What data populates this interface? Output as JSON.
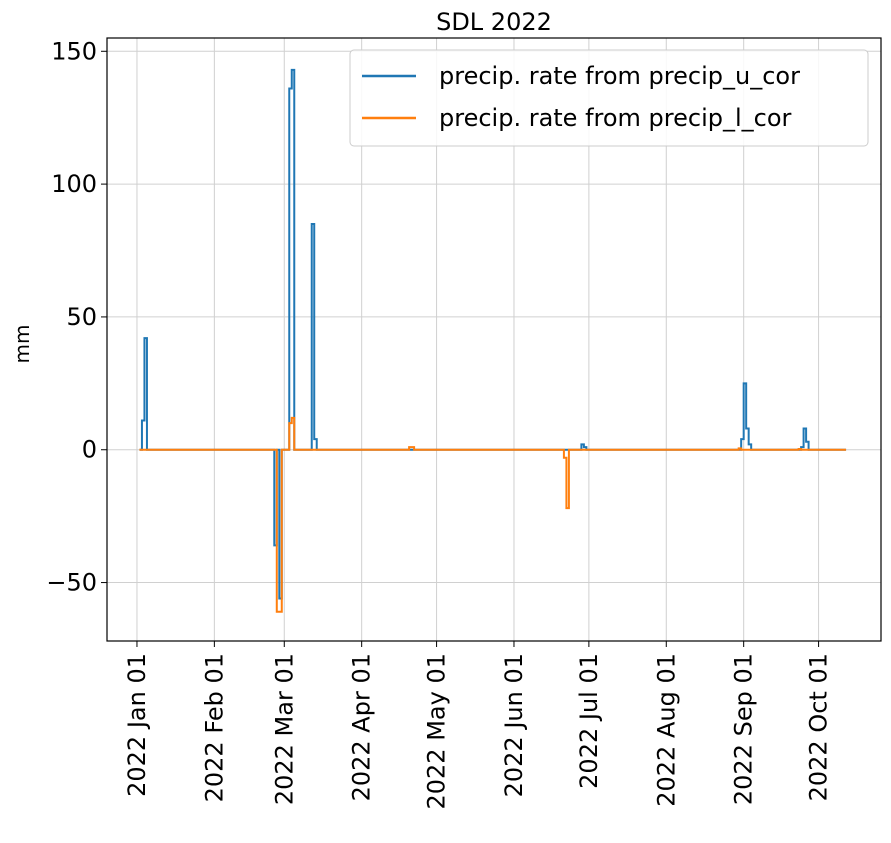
{
  "chart_data": {
    "type": "line",
    "title": "SDL 2022",
    "xlabel": "",
    "ylabel": "mm",
    "x_axis_type": "date",
    "xlim": [
      "2021-12-20",
      "2022-10-26"
    ],
    "ylim": [
      -72,
      155
    ],
    "grid": true,
    "legend_position": "top-right",
    "x_ticks": [
      "2022-01-01",
      "2022-02-01",
      "2022-03-01",
      "2022-04-01",
      "2022-05-01",
      "2022-06-01",
      "2022-07-01",
      "2022-08-01",
      "2022-09-01",
      "2022-10-01"
    ],
    "x_tick_labels": [
      "2022 Jan 01",
      "2022 Feb 01",
      "2022 Mar 01",
      "2022 Apr 01",
      "2022 May 01",
      "2022 Jun 01",
      "2022 Jul 01",
      "2022 Aug 01",
      "2022 Sep 01",
      "2022 Oct 01"
    ],
    "y_ticks": [
      -50,
      0,
      50,
      100,
      150
    ],
    "y_tick_labels": [
      "−50",
      "0",
      "50",
      "100",
      "150"
    ],
    "series": [
      {
        "name": "precip. rate from precip_u_cor",
        "color": "#1f77b4",
        "step": true,
        "points": [
          [
            "2022-01-02",
            0
          ],
          [
            "2022-01-03",
            11
          ],
          [
            "2022-01-04",
            42
          ],
          [
            "2022-01-05",
            0
          ],
          [
            "2022-02-25",
            -36
          ],
          [
            "2022-02-26",
            0
          ],
          [
            "2022-02-27",
            -56
          ],
          [
            "2022-02-28",
            0
          ],
          [
            "2022-03-03",
            136
          ],
          [
            "2022-03-04",
            143
          ],
          [
            "2022-03-05",
            0
          ],
          [
            "2022-03-12",
            85
          ],
          [
            "2022-03-13",
            4
          ],
          [
            "2022-03-14",
            0
          ],
          [
            "2022-06-28",
            2
          ],
          [
            "2022-06-29",
            1
          ],
          [
            "2022-06-30",
            0
          ],
          [
            "2022-08-31",
            4
          ],
          [
            "2022-09-01",
            25
          ],
          [
            "2022-09-02",
            8
          ],
          [
            "2022-09-03",
            2
          ],
          [
            "2022-09-04",
            0
          ],
          [
            "2022-09-24",
            1
          ],
          [
            "2022-09-25",
            8
          ],
          [
            "2022-09-26",
            3
          ],
          [
            "2022-09-27",
            0
          ],
          [
            "2022-10-12",
            0
          ]
        ]
      },
      {
        "name": "precip. rate from precip_l_cor",
        "color": "#ff7f0e",
        "step": true,
        "points": [
          [
            "2022-01-02",
            0
          ],
          [
            "2022-02-26",
            -61
          ],
          [
            "2022-02-28",
            0
          ],
          [
            "2022-03-03",
            10
          ],
          [
            "2022-03-04",
            12
          ],
          [
            "2022-03-05",
            0
          ],
          [
            "2022-04-20",
            1
          ],
          [
            "2022-04-22",
            0
          ],
          [
            "2022-06-21",
            -3
          ],
          [
            "2022-06-22",
            -22
          ],
          [
            "2022-06-23",
            0
          ],
          [
            "2022-08-30",
            0.5
          ],
          [
            "2022-08-31",
            0
          ],
          [
            "2022-09-23",
            0.3
          ],
          [
            "2022-09-24",
            0
          ],
          [
            "2022-10-12",
            0
          ]
        ]
      }
    ]
  }
}
